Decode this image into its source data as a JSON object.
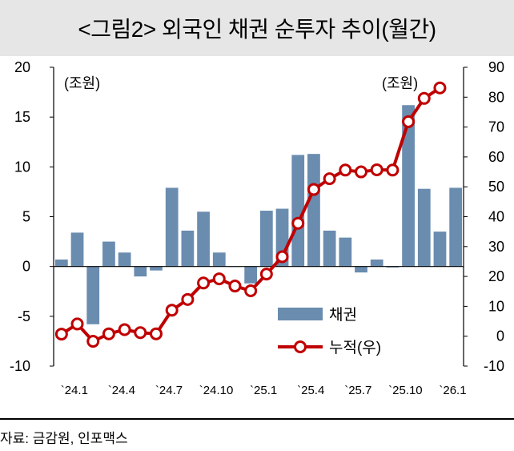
{
  "chart_data": {
    "type": "bar+line",
    "title": "<그림2> 외국인 채권 순투자 추이(월간)",
    "left_unit": "(조원)",
    "right_unit": "(조원)",
    "left_ylim": [
      -10,
      20
    ],
    "left_ticks": [
      "20",
      "15",
      "10",
      "5",
      "0",
      "-5",
      "-10"
    ],
    "right_ylim": [
      -10,
      90
    ],
    "right_ticks": [
      "90",
      "80",
      "70",
      "60",
      "50",
      "40",
      "30",
      "20",
      "10",
      "0",
      "-10"
    ],
    "x_tick_labels": [
      "`24.1",
      "`24.4",
      "`24.7",
      "`24.10",
      "`25.1",
      "`25.4",
      "`25.7",
      "`25.10",
      "`26.1"
    ],
    "categories": [
      "24.1",
      "24.2",
      "24.3",
      "24.4",
      "24.5",
      "24.6",
      "24.7",
      "24.8",
      "24.9",
      "24.10",
      "24.11",
      "24.12",
      "25.1",
      "25.2",
      "25.3",
      "25.4",
      "25.5",
      "25.6",
      "25.7",
      "25.8",
      "25.9",
      "25.10",
      "25.11",
      "25.12",
      "26.1",
      "26.2"
    ],
    "series": [
      {
        "name": "채권",
        "axis": "left",
        "color": "#6a8caf",
        "values": [
          0.7,
          3.4,
          -5.8,
          2.5,
          1.4,
          -1.0,
          -0.4,
          7.9,
          3.6,
          5.5,
          1.4,
          0.0,
          -1.7,
          5.6,
          5.8,
          11.2,
          11.3,
          3.6,
          2.9,
          -0.6,
          0.7,
          -0.1,
          16.2,
          7.8,
          3.5,
          7.9
        ]
      },
      {
        "name": "누적(우)",
        "axis": "right",
        "color": "#c00000",
        "values": [
          0.7,
          4.1,
          -1.7,
          0.8,
          2.2,
          1.2,
          0.8,
          8.7,
          12.3,
          17.8,
          19.2,
          16.8,
          15.2,
          20.8,
          26.6,
          37.8,
          49.1,
          52.7,
          55.6,
          55.0,
          55.7,
          55.6,
          71.8,
          79.6,
          83.1,
          null
        ]
      }
    ],
    "legend": {
      "position": "bottom-right",
      "labels": [
        "채권",
        "누적(우)"
      ]
    }
  },
  "source": "자료: 금감원, 인포맥스"
}
